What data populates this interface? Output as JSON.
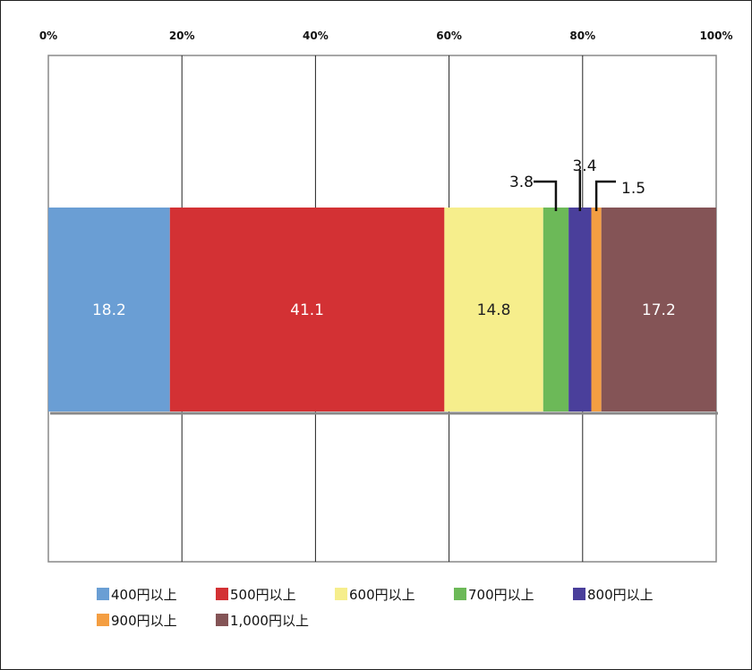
{
  "chart_data": {
    "type": "bar",
    "orientation": "horizontal",
    "stacked": true,
    "categories": [
      ""
    ],
    "x_ticks": [
      "0%",
      "20%",
      "40%",
      "60%",
      "80%",
      "100%"
    ],
    "xlim": [
      0,
      100
    ],
    "grid": true,
    "legend_position": "bottom",
    "series": [
      {
        "name": "400円以上",
        "values": [
          18.2
        ],
        "label": "18.2",
        "color": "#6a9ed4",
        "label_inside": true,
        "label_color": "#ffffff"
      },
      {
        "name": "500円以上",
        "values": [
          41.1
        ],
        "label": "41.1",
        "color": "#d33134",
        "label_inside": true,
        "label_color": "#ffffff"
      },
      {
        "name": "600円以上",
        "values": [
          14.8
        ],
        "label": "14.8",
        "color": "#f6ee8c",
        "label_inside": true,
        "label_color": "#222222"
      },
      {
        "name": "700円以上",
        "values": [
          3.8
        ],
        "label": "3.8",
        "color": "#6cb958",
        "label_inside": false,
        "label_color": "#111111"
      },
      {
        "name": "800円以上",
        "values": [
          3.4
        ],
        "label": "3.4",
        "color": "#4a3f9b",
        "label_inside": false,
        "label_color": "#111111"
      },
      {
        "name": "900円以上",
        "values": [
          1.5
        ],
        "label": "1.5",
        "color": "#f49e42",
        "label_inside": false,
        "label_color": "#111111"
      },
      {
        "name": "1,000円以上",
        "values": [
          17.2
        ],
        "label": "17.2",
        "color": "#845456",
        "label_inside": true,
        "label_color": "#ffffff"
      }
    ]
  }
}
